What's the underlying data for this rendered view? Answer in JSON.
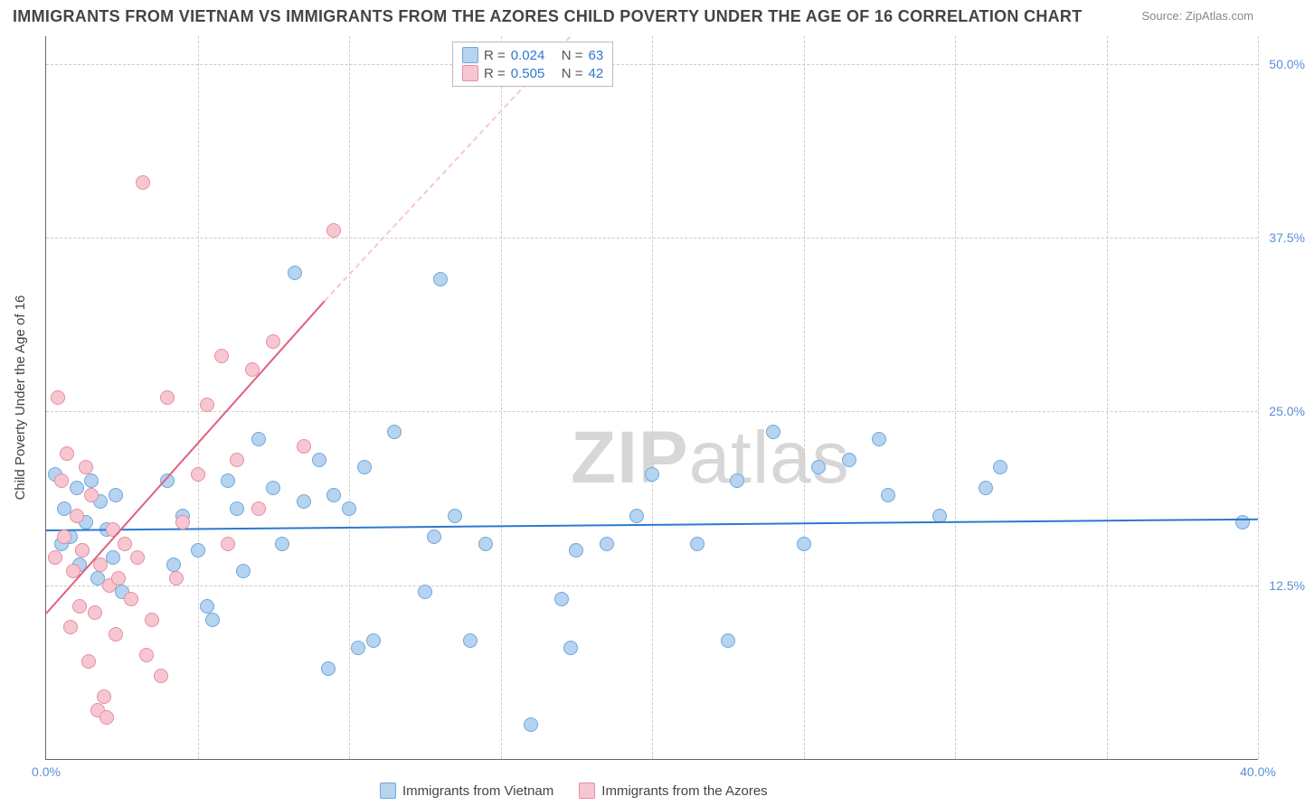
{
  "title": "IMMIGRANTS FROM VIETNAM VS IMMIGRANTS FROM THE AZORES CHILD POVERTY UNDER THE AGE OF 16 CORRELATION CHART",
  "source": "Source: ZipAtlas.com",
  "y_axis_label": "Child Poverty Under the Age of 16",
  "watermark_zip": "ZIP",
  "watermark_atlas": "atlas",
  "chart": {
    "type": "scatter",
    "xlim": [
      0,
      40
    ],
    "ylim": [
      0,
      52
    ],
    "x_ticks": [
      {
        "value": 0,
        "label": "0.0%"
      },
      {
        "value": 40,
        "label": "40.0%"
      }
    ],
    "y_ticks": [
      {
        "value": 12.5,
        "label": "12.5%"
      },
      {
        "value": 25.0,
        "label": "25.0%"
      },
      {
        "value": 37.5,
        "label": "37.5%"
      },
      {
        "value": 50.0,
        "label": "50.0%"
      }
    ],
    "grid_y_positions": [
      12.5,
      25.0,
      37.5,
      50.0
    ],
    "grid_x_positions": [
      5,
      10,
      15,
      20,
      25,
      30,
      35,
      40
    ],
    "background_color": "#ffffff",
    "grid_color": "#cccccc",
    "axis_color": "#666666"
  },
  "series": [
    {
      "key": "vietnam",
      "label": "Immigrants from Vietnam",
      "R": "0.024",
      "N": "63",
      "fill_color": "#b6d3f0",
      "stroke_color": "#6fa8dc",
      "line_color": "#2d78d0",
      "trend": {
        "x1": 0,
        "y1": 16.5,
        "x2": 40,
        "y2": 17.3,
        "dashed_extension": false
      },
      "points": [
        {
          "x": 0.3,
          "y": 20.5
        },
        {
          "x": 0.5,
          "y": 15.5
        },
        {
          "x": 0.6,
          "y": 18.0
        },
        {
          "x": 0.8,
          "y": 16.0
        },
        {
          "x": 1.0,
          "y": 19.5
        },
        {
          "x": 1.1,
          "y": 14.0
        },
        {
          "x": 1.2,
          "y": 15.0
        },
        {
          "x": 1.3,
          "y": 17.0
        },
        {
          "x": 1.5,
          "y": 20.0
        },
        {
          "x": 1.7,
          "y": 13.0
        },
        {
          "x": 1.8,
          "y": 18.5
        },
        {
          "x": 2.0,
          "y": 16.5
        },
        {
          "x": 2.2,
          "y": 14.5
        },
        {
          "x": 2.3,
          "y": 19.0
        },
        {
          "x": 2.5,
          "y": 12.0
        },
        {
          "x": 4.0,
          "y": 20.0
        },
        {
          "x": 4.2,
          "y": 14.0
        },
        {
          "x": 4.5,
          "y": 17.5
        },
        {
          "x": 5.0,
          "y": 15.0
        },
        {
          "x": 5.3,
          "y": 11.0
        },
        {
          "x": 5.5,
          "y": 10.0
        },
        {
          "x": 6.0,
          "y": 20.0
        },
        {
          "x": 6.3,
          "y": 18.0
        },
        {
          "x": 6.5,
          "y": 13.5
        },
        {
          "x": 7.0,
          "y": 23.0
        },
        {
          "x": 7.5,
          "y": 19.5
        },
        {
          "x": 7.8,
          "y": 15.5
        },
        {
          "x": 8.2,
          "y": 35.0
        },
        {
          "x": 8.5,
          "y": 18.5
        },
        {
          "x": 9.0,
          "y": 21.5
        },
        {
          "x": 9.3,
          "y": 6.5
        },
        {
          "x": 9.5,
          "y": 19.0
        },
        {
          "x": 10.0,
          "y": 18.0
        },
        {
          "x": 10.3,
          "y": 8.0
        },
        {
          "x": 10.5,
          "y": 21.0
        },
        {
          "x": 10.8,
          "y": 8.5
        },
        {
          "x": 11.5,
          "y": 23.5
        },
        {
          "x": 12.5,
          "y": 12.0
        },
        {
          "x": 12.8,
          "y": 16.0
        },
        {
          "x": 13.0,
          "y": 34.5
        },
        {
          "x": 13.5,
          "y": 17.5
        },
        {
          "x": 14.0,
          "y": 8.5
        },
        {
          "x": 14.5,
          "y": 15.5
        },
        {
          "x": 16.0,
          "y": 2.5
        },
        {
          "x": 17.0,
          "y": 11.5
        },
        {
          "x": 17.3,
          "y": 8.0
        },
        {
          "x": 17.5,
          "y": 15.0
        },
        {
          "x": 18.5,
          "y": 15.5
        },
        {
          "x": 19.5,
          "y": 17.5
        },
        {
          "x": 20.0,
          "y": 20.5
        },
        {
          "x": 21.5,
          "y": 15.5
        },
        {
          "x": 22.5,
          "y": 8.5
        },
        {
          "x": 22.8,
          "y": 20.0
        },
        {
          "x": 24.0,
          "y": 23.5
        },
        {
          "x": 25.0,
          "y": 15.5
        },
        {
          "x": 25.5,
          "y": 21.0
        },
        {
          "x": 26.5,
          "y": 21.5
        },
        {
          "x": 27.5,
          "y": 23.0
        },
        {
          "x": 27.8,
          "y": 19.0
        },
        {
          "x": 29.5,
          "y": 17.5
        },
        {
          "x": 31.0,
          "y": 19.5
        },
        {
          "x": 31.5,
          "y": 21.0
        },
        {
          "x": 39.5,
          "y": 17.0
        }
      ]
    },
    {
      "key": "azores",
      "label": "Immigrants from the Azores",
      "R": "0.505",
      "N": "42",
      "fill_color": "#f7c7d1",
      "stroke_color": "#e88da0",
      "line_color": "#e0607e",
      "trend": {
        "x1": 0,
        "y1": 10.5,
        "x2": 9.2,
        "y2": 33.0,
        "dashed_to_x": 17.3,
        "dashed_to_y": 52.0
      },
      "points": [
        {
          "x": 0.3,
          "y": 14.5
        },
        {
          "x": 0.4,
          "y": 26.0
        },
        {
          "x": 0.5,
          "y": 20.0
        },
        {
          "x": 0.6,
          "y": 16.0
        },
        {
          "x": 0.7,
          "y": 22.0
        },
        {
          "x": 0.8,
          "y": 9.5
        },
        {
          "x": 0.9,
          "y": 13.5
        },
        {
          "x": 1.0,
          "y": 17.5
        },
        {
          "x": 1.1,
          "y": 11.0
        },
        {
          "x": 1.2,
          "y": 15.0
        },
        {
          "x": 1.3,
          "y": 21.0
        },
        {
          "x": 1.4,
          "y": 7.0
        },
        {
          "x": 1.5,
          "y": 19.0
        },
        {
          "x": 1.6,
          "y": 10.5
        },
        {
          "x": 1.7,
          "y": 3.5
        },
        {
          "x": 1.8,
          "y": 14.0
        },
        {
          "x": 1.9,
          "y": 4.5
        },
        {
          "x": 2.0,
          "y": 3.0
        },
        {
          "x": 2.1,
          "y": 12.5
        },
        {
          "x": 2.2,
          "y": 16.5
        },
        {
          "x": 2.3,
          "y": 9.0
        },
        {
          "x": 2.4,
          "y": 13.0
        },
        {
          "x": 2.6,
          "y": 15.5
        },
        {
          "x": 2.8,
          "y": 11.5
        },
        {
          "x": 3.0,
          "y": 14.5
        },
        {
          "x": 3.2,
          "y": 41.5
        },
        {
          "x": 3.3,
          "y": 7.5
        },
        {
          "x": 3.5,
          "y": 10.0
        },
        {
          "x": 3.8,
          "y": 6.0
        },
        {
          "x": 4.0,
          "y": 26.0
        },
        {
          "x": 4.3,
          "y": 13.0
        },
        {
          "x": 4.5,
          "y": 17.0
        },
        {
          "x": 5.0,
          "y": 20.5
        },
        {
          "x": 5.3,
          "y": 25.5
        },
        {
          "x": 5.8,
          "y": 29.0
        },
        {
          "x": 6.0,
          "y": 15.5
        },
        {
          "x": 6.3,
          "y": 21.5
        },
        {
          "x": 6.8,
          "y": 28.0
        },
        {
          "x": 7.0,
          "y": 18.0
        },
        {
          "x": 7.5,
          "y": 30.0
        },
        {
          "x": 8.5,
          "y": 22.5
        },
        {
          "x": 9.5,
          "y": 38.0
        }
      ]
    }
  ],
  "legend_top": {
    "r_label": "R =",
    "n_label": "N ="
  },
  "legend_bottom": {
    "items": [
      "Immigrants from Vietnam",
      "Immigrants from the Azores"
    ]
  }
}
